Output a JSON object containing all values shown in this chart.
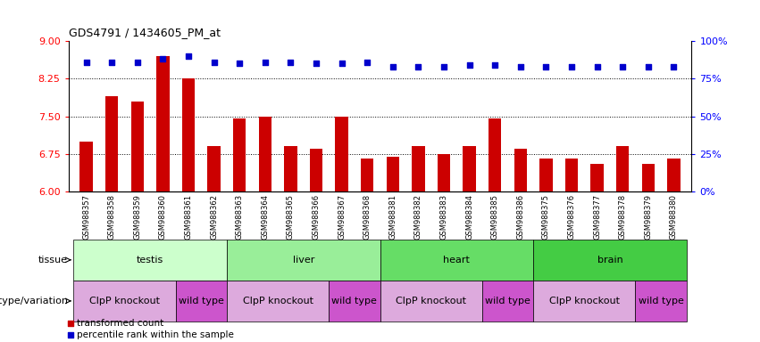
{
  "title": "GDS4791 / 1434605_PM_at",
  "samples": [
    "GSM988357",
    "GSM988358",
    "GSM988359",
    "GSM988360",
    "GSM988361",
    "GSM988362",
    "GSM988363",
    "GSM988364",
    "GSM988365",
    "GSM988366",
    "GSM988367",
    "GSM988368",
    "GSM988381",
    "GSM988382",
    "GSM988383",
    "GSM988384",
    "GSM988385",
    "GSM988386",
    "GSM988375",
    "GSM988376",
    "GSM988377",
    "GSM988378",
    "GSM988379",
    "GSM988380"
  ],
  "bar_values": [
    7.0,
    7.9,
    7.8,
    8.7,
    8.25,
    6.9,
    7.45,
    7.5,
    6.9,
    6.85,
    7.5,
    6.65,
    6.7,
    6.9,
    6.75,
    6.9,
    7.45,
    6.85,
    6.65,
    6.65,
    6.55,
    6.9,
    6.55,
    6.65
  ],
  "percentile_values": [
    86,
    86,
    86,
    88,
    90,
    86,
    85,
    86,
    86,
    85,
    85,
    86,
    83,
    83,
    83,
    84,
    84,
    83,
    83,
    83,
    83,
    83,
    83,
    83
  ],
  "bar_color": "#cc0000",
  "dot_color": "#0000cc",
  "ylim_left": [
    6,
    9
  ],
  "yticks_left": [
    6,
    6.75,
    7.5,
    8.25,
    9
  ],
  "ylim_right": [
    0,
    100
  ],
  "yticks_right": [
    0,
    25,
    50,
    75,
    100
  ],
  "gridlines": [
    6.75,
    7.5,
    8.25
  ],
  "tissue_row": [
    {
      "label": "testis",
      "start": 0,
      "end": 6,
      "color": "#ccffcc"
    },
    {
      "label": "liver",
      "start": 6,
      "end": 12,
      "color": "#99ee99"
    },
    {
      "label": "heart",
      "start": 12,
      "end": 18,
      "color": "#66dd66"
    },
    {
      "label": "brain",
      "start": 18,
      "end": 24,
      "color": "#44cc44"
    }
  ],
  "genotype_row": [
    {
      "label": "ClpP knockout",
      "start": 0,
      "end": 4,
      "color": "#ddaadd"
    },
    {
      "label": "wild type",
      "start": 4,
      "end": 6,
      "color": "#cc55cc"
    },
    {
      "label": "ClpP knockout",
      "start": 6,
      "end": 10,
      "color": "#ddaadd"
    },
    {
      "label": "wild type",
      "start": 10,
      "end": 12,
      "color": "#cc55cc"
    },
    {
      "label": "ClpP knockout",
      "start": 12,
      "end": 16,
      "color": "#ddaadd"
    },
    {
      "label": "wild type",
      "start": 16,
      "end": 18,
      "color": "#cc55cc"
    },
    {
      "label": "ClpP knockout",
      "start": 18,
      "end": 22,
      "color": "#ddaadd"
    },
    {
      "label": "wild type",
      "start": 22,
      "end": 24,
      "color": "#cc55cc"
    }
  ],
  "legend_bar_color": "#cc0000",
  "legend_dot_color": "#0000cc",
  "legend_bar_label": "transformed count",
  "legend_dot_label": "percentile rank within the sample",
  "tissue_label": "tissue",
  "genotype_label": "genotype/variation"
}
